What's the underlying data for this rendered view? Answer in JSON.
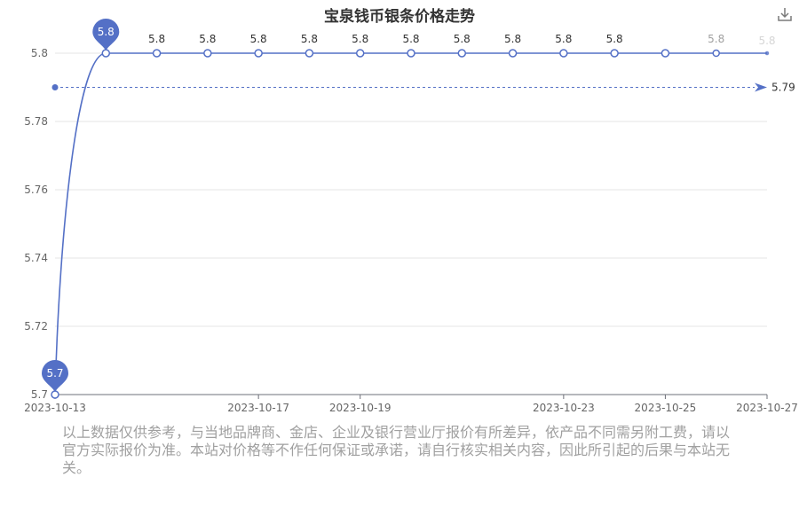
{
  "chart_data": {
    "type": "line",
    "title": "宝泉钱币银条价格走势",
    "x": [
      "2023-10-13",
      "2023-10-14",
      "2023-10-15",
      "2023-10-16",
      "2023-10-17",
      "2023-10-18",
      "2023-10-19",
      "2023-10-20",
      "2023-10-21",
      "2023-10-22",
      "2023-10-23",
      "2023-10-24",
      "2023-10-25",
      "2023-10-26",
      "2023-10-27"
    ],
    "series": [
      {
        "values": [
          5.7,
          5.8,
          5.8,
          5.8,
          5.8,
          5.8,
          5.8,
          5.8,
          5.8,
          5.8,
          5.8,
          5.8,
          5.8,
          5.8,
          5.8
        ]
      }
    ],
    "point_labels": [
      "5.7",
      "5.8",
      "5.8",
      "5.8",
      "5.8",
      "5.8",
      "5.8",
      "5.8",
      "5.8",
      "5.8",
      "5.8"
    ],
    "xticks": [
      "2023-10-13",
      "2023-10-17",
      "2023-10-19",
      "2023-10-23",
      "2023-10-25",
      "2023-10-27"
    ],
    "yticks": [
      "5.7",
      "5.72",
      "5.74",
      "5.76",
      "5.78",
      "5.8"
    ],
    "ylim": [
      5.7,
      5.8
    ],
    "average_line": {
      "value": 5.79,
      "label": "5.79"
    },
    "markers": {
      "max_label": "5.8",
      "min_label": "5.7"
    },
    "grid": true,
    "colors": {
      "line": "#5470c6",
      "grid": "#e6e6e6",
      "axis": "#6e7079",
      "text": "#666666"
    }
  },
  "disclaimer": "以上数据仅供参考，与当地品牌商、金店、企业及银行营业厅报价有所差异，依产品不同需另附工费，请以官方实际报价为准。本站对价格等不作任何保证或承诺，请自行核实相关内容，因此所引起的后果与本站无关。",
  "toolbar": {
    "download_icon": "download-icon"
  }
}
